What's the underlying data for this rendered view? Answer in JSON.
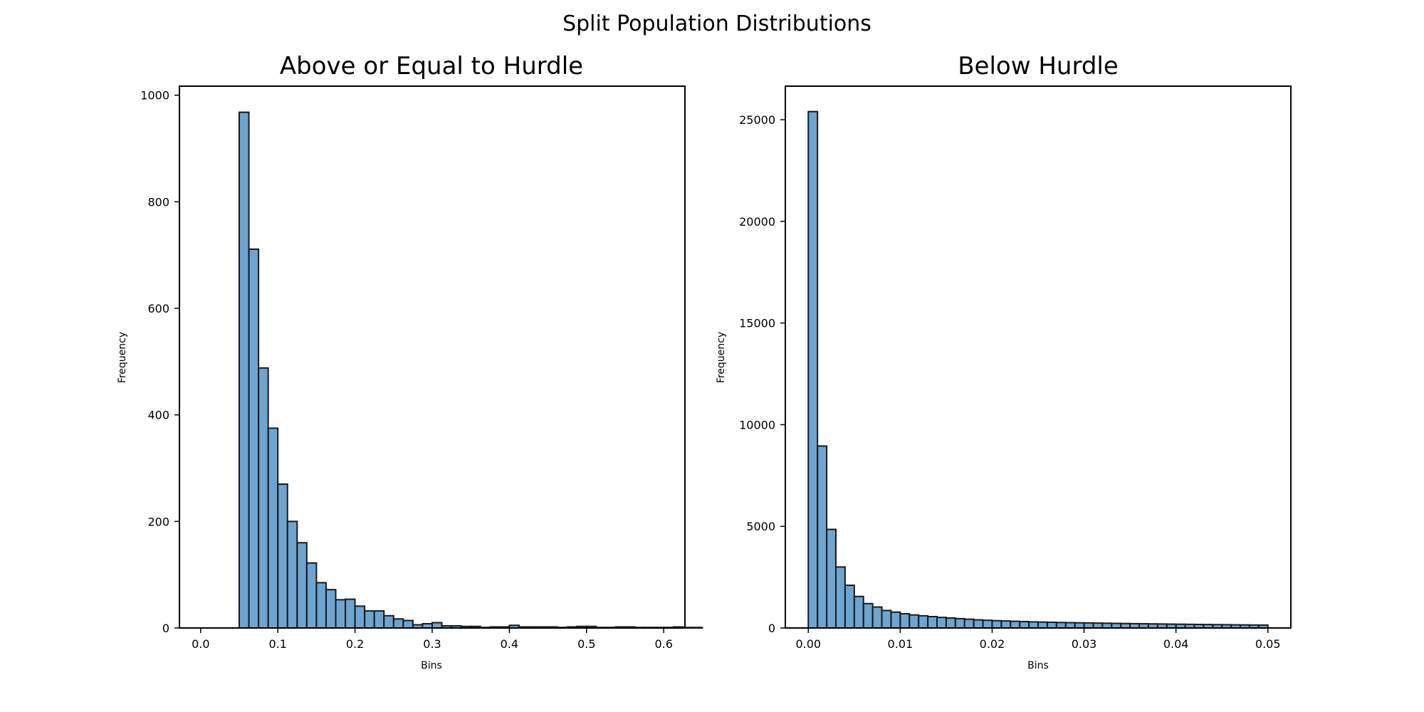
{
  "title": "Split Population Distributions",
  "chart_data": [
    {
      "type": "bar",
      "title": "Above or Equal to Hurdle",
      "xlabel": "Bins",
      "ylabel": "Frequency",
      "xlim": [
        -0.0275,
        0.6275
      ],
      "ylim": [
        0,
        1017
      ],
      "xticks": [
        0.0,
        0.1,
        0.2,
        0.3,
        0.4,
        0.5,
        0.6
      ],
      "xtick_labels": [
        "0.0",
        "0.1",
        "0.2",
        "0.3",
        "0.4",
        "0.5",
        "0.6"
      ],
      "yticks": [
        0,
        200,
        400,
        600,
        800,
        1000
      ],
      "ytick_labels": [
        "0",
        "200",
        "400",
        "600",
        "800",
        "1000"
      ],
      "bin_start": 0.05,
      "bin_width": 0.0125,
      "values": [
        968,
        711,
        488,
        375,
        270,
        200,
        160,
        122,
        85,
        72,
        53,
        54,
        41,
        32,
        32,
        23,
        17,
        14,
        6,
        8,
        10,
        4,
        4,
        3,
        3,
        1,
        2,
        2,
        5,
        2,
        2,
        2,
        2,
        1,
        2,
        3,
        3,
        1,
        1,
        2,
        2,
        1,
        1,
        1,
        1,
        2,
        1,
        1
      ],
      "bar_color": "#3e85c0",
      "edge_color": "#1a1a1a",
      "grid": false
    },
    {
      "type": "bar",
      "title": "Below Hurdle",
      "xlabel": "Bins",
      "ylabel": "Frequency",
      "xlim": [
        -0.0025,
        0.0525
      ],
      "ylim": [
        0,
        26650
      ],
      "xticks": [
        0.0,
        0.01,
        0.02,
        0.03,
        0.04,
        0.05
      ],
      "xtick_labels": [
        "0.00",
        "0.01",
        "0.02",
        "0.03",
        "0.04",
        "0.05"
      ],
      "yticks": [
        0,
        5000,
        10000,
        15000,
        20000,
        25000
      ],
      "ytick_labels": [
        "0",
        "5000",
        "10000",
        "15000",
        "20000",
        "25000"
      ],
      "bin_start": 0.0,
      "bin_width": 0.001,
      "values": [
        25400,
        8950,
        4850,
        3000,
        2100,
        1550,
        1200,
        1030,
        860,
        780,
        700,
        640,
        600,
        560,
        520,
        490,
        460,
        430,
        400,
        380,
        360,
        345,
        330,
        315,
        300,
        290,
        280,
        270,
        262,
        255,
        248,
        241,
        234,
        227,
        220,
        214,
        208,
        202,
        196,
        190,
        185,
        180,
        175,
        170,
        165,
        160,
        155,
        150,
        146,
        142
      ],
      "bar_color": "#3e85c0",
      "edge_color": "#1a1a1a",
      "grid": false
    }
  ]
}
